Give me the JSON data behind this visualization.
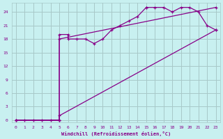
{
  "xlabel": "Windchill (Refroidissement éolien,°C)",
  "bg_color": "#c8f0f0",
  "grid_color": "#a8c8c8",
  "line_color": "#880088",
  "xlim": [
    -0.5,
    23.5
  ],
  "ylim": [
    -0.5,
    26
  ],
  "xticks": [
    0,
    1,
    2,
    3,
    4,
    5,
    6,
    7,
    8,
    9,
    10,
    11,
    12,
    13,
    14,
    15,
    16,
    17,
    18,
    19,
    20,
    21,
    22,
    23
  ],
  "yticks": [
    0,
    3,
    6,
    9,
    12,
    15,
    18,
    21,
    24
  ],
  "line1_x": [
    0,
    1,
    2,
    3,
    4,
    5,
    5,
    6,
    6,
    7,
    8,
    9,
    10,
    11,
    12,
    13,
    14,
    15,
    15,
    16,
    17,
    18,
    19,
    20,
    21,
    22,
    23
  ],
  "line1_y": [
    0,
    0,
    0,
    0,
    0,
    0,
    19,
    19,
    18,
    18,
    18,
    17,
    18,
    20,
    21,
    22,
    23,
    25,
    25,
    25,
    25,
    24,
    25,
    25,
    24,
    21,
    20
  ],
  "line2_x": [
    0,
    5,
    5,
    23
  ],
  "line2_y": [
    0,
    0,
    18,
    25
  ],
  "line3_x": [
    0,
    5,
    5,
    23
  ],
  "line3_y": [
    0,
    0,
    1,
    20
  ]
}
